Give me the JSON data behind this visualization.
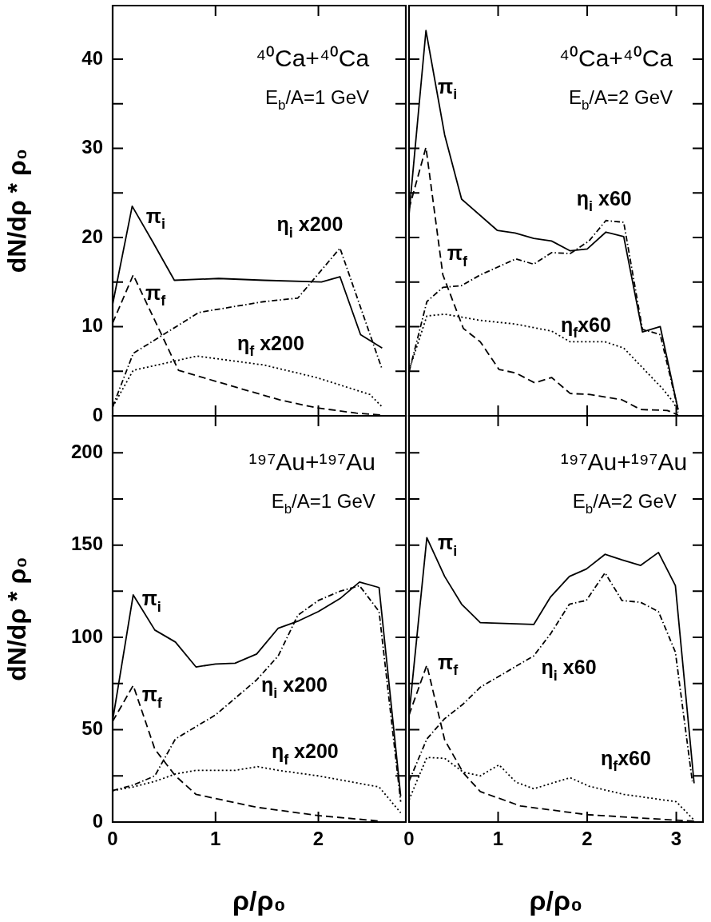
{
  "chart_data": [
    {
      "type": "line",
      "title": "⁴⁰Ca+⁴⁰Ca",
      "subtitle": "E$_{b}$/A=1 GeV",
      "ylabel": "dN/dρ * ρ₀",
      "xlim": [
        0,
        2.85
      ],
      "xticks": [
        0,
        1,
        2
      ],
      "ylim": [
        0,
        46
      ],
      "yticks": [
        0,
        {
          "value": 5,
          "label": null
        },
        10,
        {
          "value": 15,
          "label": null
        },
        20,
        {
          "value": 25,
          "label": null
        },
        30,
        {
          "value": 35,
          "label": null
        },
        40
      ],
      "tick_labels": "y",
      "marker": "none",
      "series": [
        {
          "name": "π$_{i}$",
          "color": "#000000",
          "line_style": "solid",
          "x": [
            0,
            0.19,
            0.39,
            0.6,
            1.03,
            1.47,
            2.03,
            2.21,
            2.41,
            2.62
          ],
          "values": [
            12.5,
            23.5,
            19.5,
            15.2,
            15.4,
            15.2,
            15.0,
            15.6,
            9.1,
            7.6
          ]
        },
        {
          "name": "π$_{f}$",
          "color": "#000000",
          "line_style": "dashed",
          "x": [
            0,
            0.2,
            0.64,
            1.26,
            1.62,
            1.98,
            2.37,
            2.6
          ],
          "values": [
            10.4,
            15.8,
            5.1,
            3.0,
            1.8,
            0.9,
            0.3,
            0.1
          ]
        },
        {
          "name": "η$_{i}$ x200",
          "color": "#000000",
          "line_style": "dashdot",
          "x": [
            0,
            0.2,
            0.84,
            1.47,
            1.8,
            2.21,
            2.62
          ],
          "values": [
            1,
            7.0,
            11.6,
            12.8,
            13.2,
            18.8,
            5.2
          ]
        },
        {
          "name": "η$_{f}$ x200",
          "color": "#000000",
          "line_style": "dotted",
          "x": [
            0,
            0.2,
            0.82,
            1.47,
            1.98,
            2.5,
            2.62
          ],
          "values": [
            1,
            5.1,
            6.7,
            5.7,
            4.3,
            2.4,
            1.0
          ]
        }
      ]
    },
    {
      "type": "line",
      "title": "⁴⁰Ca+⁴⁰Ca",
      "subtitle": "E$_{b}$/A=2 GeV",
      "xlim": [
        0,
        3.3
      ],
      "xticks": [
        0,
        1,
        2,
        3
      ],
      "ylim": [
        0,
        46
      ],
      "yticks": [
        0,
        5,
        10,
        15,
        20,
        25,
        30,
        35,
        40
      ],
      "tick_labels": false,
      "marker": "none",
      "series": [
        {
          "name": "π$_{i}$",
          "color": "#000000",
          "line_style": "solid",
          "x": [
            0,
            0.19,
            0.4,
            0.59,
            0.99,
            1.19,
            1.4,
            1.6,
            1.81,
            2.0,
            2.21,
            2.41,
            2.62,
            2.82,
            3.02
          ],
          "values": [
            22.6,
            43.2,
            31.5,
            24.3,
            20.8,
            20.5,
            19.9,
            19.6,
            18.5,
            18.7,
            20.6,
            20.1,
            9.4,
            10.0,
            0.7
          ]
        },
        {
          "name": "π$_{f}$",
          "color": "#000000",
          "line_style": "dashed",
          "x": [
            0,
            0.19,
            0.38,
            0.61,
            0.8,
            1.01,
            1.2,
            1.41,
            1.6,
            1.81,
            2.02,
            2.39,
            2.6,
            2.9,
            3.02
          ],
          "values": [
            23.2,
            30.1,
            15.8,
            9.8,
            8.3,
            5.2,
            4.8,
            3.7,
            4.3,
            2.5,
            2.4,
            1.8,
            0.7,
            0.6,
            0.1
          ]
        },
        {
          "name": "η$_{i}$ x60",
          "color": "#000000",
          "line_style": "dashdot",
          "x": [
            0,
            0.2,
            0.38,
            0.59,
            0.8,
            1.2,
            1.4,
            1.6,
            1.81,
            2.02,
            2.21,
            2.41,
            2.62,
            2.82,
            3.02
          ],
          "values": [
            4.9,
            12.8,
            14.4,
            14.6,
            15.8,
            17.6,
            17.0,
            18.3,
            18.2,
            19.6,
            21.9,
            21.7,
            9.7,
            9.1,
            0.7
          ]
        },
        {
          "name": "η$_{f}$x60",
          "color": "#000000",
          "line_style": "dotted",
          "x": [
            0,
            0.2,
            0.4,
            0.8,
            1.19,
            1.6,
            1.81,
            2.2,
            2.41,
            2.85,
            2.97,
            3.02
          ],
          "values": [
            5.1,
            11.2,
            11.4,
            10.7,
            10.3,
            9.5,
            8.3,
            8.3,
            7.6,
            3.0,
            1.5,
            0.4
          ]
        }
      ]
    },
    {
      "type": "line",
      "title": "¹⁹⁷Au+¹⁹⁷Au",
      "subtitle": "E$_{b}$/A=1 GeV",
      "xlabel": "ρ/ρ₀",
      "ylabel": "dN/dρ * ρ₀",
      "xlim": [
        0,
        2.85
      ],
      "xticks": [
        0,
        1,
        2
      ],
      "ylim": [
        0,
        220
      ],
      "yticks": [
        0,
        {
          "value": 25,
          "label": null
        },
        50,
        {
          "value": 75,
          "label": null
        },
        100,
        {
          "value": 125,
          "label": null
        },
        150,
        {
          "value": 175,
          "label": null
        },
        200
      ],
      "marker": "none",
      "series": [
        {
          "name": "π$_{i}$",
          "color": "#000000",
          "line_style": "solid",
          "x": [
            0,
            0.2,
            0.41,
            0.61,
            0.81,
            1.0,
            1.19,
            1.4,
            1.61,
            1.81,
            2.0,
            2.21,
            2.4,
            2.59,
            2.8
          ],
          "values": [
            55,
            123,
            104,
            97.5,
            84,
            85.6,
            86,
            91,
            105,
            109,
            114,
            121,
            130,
            127,
            14
          ]
        },
        {
          "name": "π$_{f}$",
          "color": "#000000",
          "line_style": "dashed",
          "x": [
            0,
            0.2,
            0.41,
            0.61,
            0.81,
            1.4,
            2.0,
            2.6
          ],
          "values": [
            54.5,
            74,
            39.5,
            25,
            15,
            8,
            3.5,
            0.5
          ]
        },
        {
          "name": "η$_{i}$ x200",
          "color": "#000000",
          "line_style": "dashdot",
          "x": [
            0,
            0.2,
            0.41,
            0.61,
            1.0,
            1.19,
            1.4,
            1.61,
            1.8,
            2.0,
            2.21,
            2.4,
            2.59,
            2.8
          ],
          "values": [
            17,
            20,
            25,
            45,
            58,
            67,
            77,
            90,
            112,
            120,
            125,
            128,
            114,
            11
          ]
        },
        {
          "name": "η$_{f}$ x200",
          "color": "#000000",
          "line_style": "dotted",
          "x": [
            0,
            0.2,
            0.41,
            0.61,
            0.81,
            1.19,
            1.41,
            1.61,
            2.0,
            2.59,
            2.8
          ],
          "values": [
            17,
            19,
            22,
            26,
            28,
            28,
            30,
            28,
            25,
            19,
            5
          ]
        }
      ]
    },
    {
      "type": "line",
      "title": "¹⁹⁷Au+¹⁹⁷Au",
      "subtitle": "E$_{b}$/A=2 GeV",
      "xlabel": "ρ/ρ₀",
      "xlim": [
        0,
        3.3
      ],
      "xticks": [
        0,
        1,
        2,
        3
      ],
      "ylim": [
        0,
        220
      ],
      "yticks": [
        0,
        25,
        50,
        75,
        100,
        125,
        150,
        175,
        200
      ],
      "tick_labels": "x",
      "marker": "none",
      "series": [
        {
          "name": "π$_{i}$",
          "color": "#000000",
          "line_style": "solid",
          "x": [
            0,
            0.2,
            0.4,
            0.59,
            0.8,
            1.4,
            1.59,
            1.8,
            1.99,
            2.2,
            2.39,
            2.6,
            2.8,
            2.99,
            3.2
          ],
          "values": [
            58,
            154,
            133,
            118,
            108,
            107,
            122,
            133,
            137,
            145,
            142,
            139,
            146,
            128,
            21
          ]
        },
        {
          "name": "π$_{f}$",
          "color": "#000000",
          "line_style": "dashed",
          "x": [
            0,
            0.2,
            0.4,
            0.61,
            0.8,
            1.25,
            2.0,
            3.0,
            3.2
          ],
          "values": [
            58,
            85,
            44.5,
            26.6,
            16.5,
            8.7,
            4,
            1,
            0.5
          ]
        },
        {
          "name": "η$_{i}$ x60",
          "color": "#000000",
          "line_style": "dashdot",
          "x": [
            0,
            0.2,
            0.4,
            0.61,
            0.8,
            1.4,
            1.59,
            1.8,
            1.99,
            2.2,
            2.39,
            2.6,
            2.8,
            2.99,
            3.18
          ],
          "values": [
            22,
            45,
            56,
            64,
            73,
            90,
            102,
            118,
            120,
            135,
            120,
            119,
            114,
            92,
            22
          ]
        },
        {
          "name": "η$_{f}$x60",
          "color": "#000000",
          "line_style": "dotted",
          "x": [
            0,
            0.2,
            0.4,
            0.61,
            0.8,
            1.01,
            1.2,
            1.4,
            1.6,
            1.81,
            2.02,
            2.41,
            3.0,
            3.2
          ],
          "values": [
            12,
            35,
            34.5,
            27,
            25,
            31,
            21.6,
            18,
            21,
            24,
            19.4,
            15,
            11,
            1
          ]
        }
      ]
    }
  ]
}
